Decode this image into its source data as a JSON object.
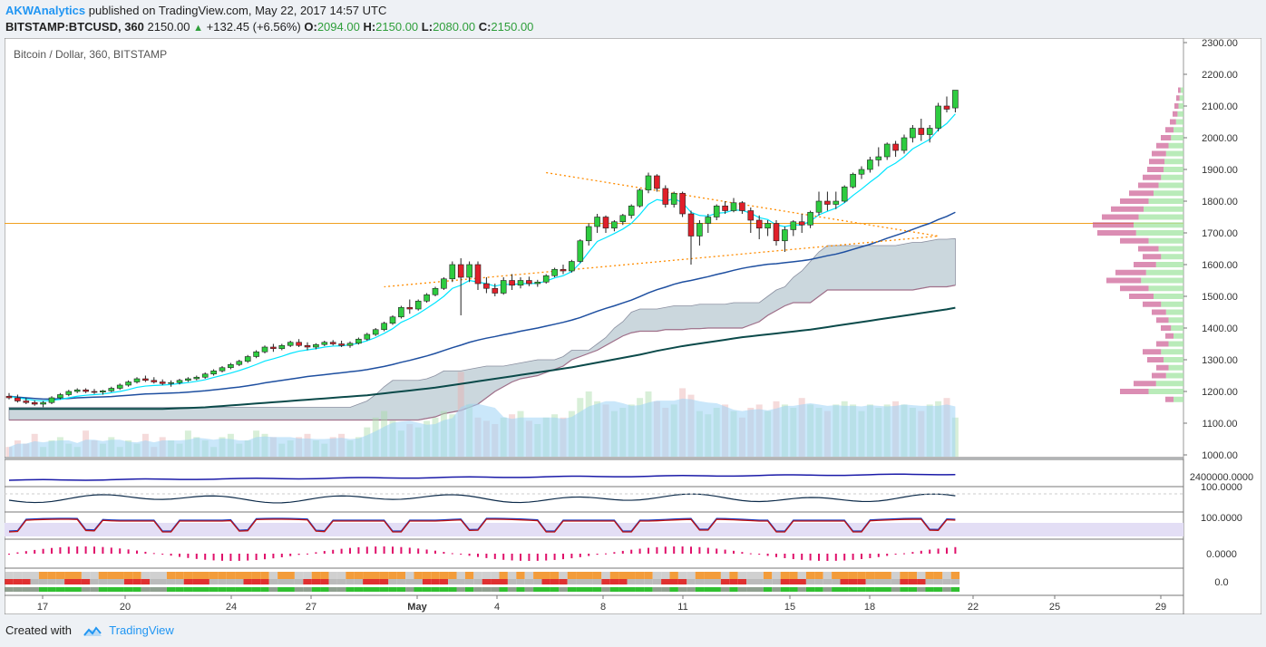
{
  "header": {
    "author": "AKWAnalytics",
    "published_text": "published on TradingView.com, May 22, 2017 14:57 UTC",
    "symbol": "BITSTAMP:BTCUSD, 360",
    "price": "2150.00",
    "change": "+132.45 (+6.56%)",
    "o_label": "O:",
    "o_val": "2094.00",
    "h_label": "H:",
    "h_val": "2150.00",
    "l_label": "L:",
    "l_val": "2080.00",
    "c_label": "C:",
    "c_val": "2150.00"
  },
  "footer": {
    "created_with": "Created with",
    "brand": "TradingView"
  },
  "colors": {
    "up": "#2ecc40",
    "down": "#e0202a",
    "ema_fast": "#00e5ff",
    "ema_mid": "#1e4fa0",
    "ema_slow": "#0b4a4a",
    "cloud": "#b9c9d1",
    "hline": "#f0a020",
    "triangle": "#ff8c00",
    "volume": "#9fd3f5",
    "accent": "#2196f3"
  },
  "chart_data": {
    "type": "candlestick",
    "title": "Bitcoin / Dollar, 360, BITSTAMP",
    "y_range": [
      1000,
      2300
    ],
    "y_ticks": [
      "1000.00",
      "1100.00",
      "1200.00",
      "1300.00",
      "1400.00",
      "1500.00",
      "1600.00",
      "1700.00",
      "1800.00",
      "1900.00",
      "2000.00",
      "2100.00",
      "2200.00",
      "2300.00"
    ],
    "x_ticks": [
      "17",
      "20",
      "24",
      "27",
      "May",
      "4",
      "8",
      "11",
      "15",
      "18",
      "22",
      "25",
      "29"
    ],
    "horizontal_line": 1730,
    "candles": [
      [
        1185,
        1195,
        1175,
        1180
      ],
      [
        1180,
        1190,
        1165,
        1170
      ],
      [
        1170,
        1180,
        1160,
        1165
      ],
      [
        1165,
        1172,
        1155,
        1160
      ],
      [
        1160,
        1170,
        1150,
        1165
      ],
      [
        1165,
        1185,
        1160,
        1180
      ],
      [
        1180,
        1195,
        1175,
        1190
      ],
      [
        1190,
        1205,
        1185,
        1200
      ],
      [
        1200,
        1210,
        1195,
        1205
      ],
      [
        1205,
        1210,
        1195,
        1200
      ],
      [
        1200,
        1208,
        1192,
        1198
      ],
      [
        1198,
        1205,
        1190,
        1202
      ],
      [
        1202,
        1215,
        1198,
        1210
      ],
      [
        1210,
        1225,
        1205,
        1220
      ],
      [
        1220,
        1235,
        1215,
        1230
      ],
      [
        1230,
        1245,
        1225,
        1240
      ],
      [
        1240,
        1250,
        1230,
        1235
      ],
      [
        1235,
        1245,
        1225,
        1230
      ],
      [
        1230,
        1238,
        1220,
        1225
      ],
      [
        1225,
        1235,
        1215,
        1228
      ],
      [
        1228,
        1240,
        1222,
        1235
      ],
      [
        1235,
        1245,
        1230,
        1240
      ],
      [
        1240,
        1250,
        1235,
        1245
      ],
      [
        1245,
        1260,
        1240,
        1255
      ],
      [
        1255,
        1270,
        1250,
        1265
      ],
      [
        1265,
        1280,
        1260,
        1275
      ],
      [
        1275,
        1290,
        1270,
        1285
      ],
      [
        1285,
        1300,
        1280,
        1295
      ],
      [
        1295,
        1315,
        1290,
        1310
      ],
      [
        1310,
        1330,
        1305,
        1325
      ],
      [
        1325,
        1345,
        1320,
        1340
      ],
      [
        1340,
        1350,
        1325,
        1335
      ],
      [
        1335,
        1350,
        1330,
        1345
      ],
      [
        1345,
        1360,
        1340,
        1355
      ],
      [
        1355,
        1365,
        1340,
        1345
      ],
      [
        1345,
        1355,
        1330,
        1340
      ],
      [
        1340,
        1352,
        1333,
        1348
      ],
      [
        1348,
        1360,
        1343,
        1355
      ],
      [
        1355,
        1362,
        1345,
        1350
      ],
      [
        1350,
        1360,
        1340,
        1345
      ],
      [
        1345,
        1358,
        1338,
        1352
      ],
      [
        1352,
        1370,
        1348,
        1365
      ],
      [
        1365,
        1385,
        1360,
        1380
      ],
      [
        1380,
        1400,
        1375,
        1395
      ],
      [
        1395,
        1420,
        1390,
        1415
      ],
      [
        1415,
        1440,
        1410,
        1435
      ],
      [
        1435,
        1470,
        1430,
        1465
      ],
      [
        1465,
        1490,
        1445,
        1460
      ],
      [
        1460,
        1490,
        1455,
        1485
      ],
      [
        1485,
        1510,
        1480,
        1505
      ],
      [
        1505,
        1530,
        1500,
        1525
      ],
      [
        1525,
        1560,
        1520,
        1555
      ],
      [
        1555,
        1610,
        1545,
        1600
      ],
      [
        1600,
        1620,
        1440,
        1560
      ],
      [
        1560,
        1610,
        1545,
        1600
      ],
      [
        1600,
        1610,
        1520,
        1540
      ],
      [
        1540,
        1560,
        1510,
        1525
      ],
      [
        1525,
        1540,
        1500,
        1510
      ],
      [
        1510,
        1560,
        1505,
        1550
      ],
      [
        1550,
        1570,
        1520,
        1535
      ],
      [
        1535,
        1560,
        1525,
        1550
      ],
      [
        1550,
        1562,
        1532,
        1540
      ],
      [
        1540,
        1552,
        1530,
        1545
      ],
      [
        1545,
        1570,
        1540,
        1565
      ],
      [
        1565,
        1590,
        1560,
        1585
      ],
      [
        1585,
        1600,
        1570,
        1580
      ],
      [
        1580,
        1615,
        1575,
        1610
      ],
      [
        1610,
        1680,
        1605,
        1675
      ],
      [
        1675,
        1730,
        1660,
        1720
      ],
      [
        1720,
        1760,
        1700,
        1750
      ],
      [
        1750,
        1755,
        1700,
        1715
      ],
      [
        1715,
        1740,
        1705,
        1735
      ],
      [
        1735,
        1760,
        1725,
        1755
      ],
      [
        1755,
        1790,
        1745,
        1785
      ],
      [
        1785,
        1840,
        1780,
        1835
      ],
      [
        1835,
        1890,
        1825,
        1880
      ],
      [
        1880,
        1885,
        1830,
        1840
      ],
      [
        1840,
        1850,
        1780,
        1790
      ],
      [
        1790,
        1830,
        1780,
        1825
      ],
      [
        1825,
        1830,
        1750,
        1760
      ],
      [
        1760,
        1770,
        1600,
        1690
      ],
      [
        1690,
        1740,
        1660,
        1730
      ],
      [
        1730,
        1760,
        1700,
        1750
      ],
      [
        1750,
        1790,
        1740,
        1785
      ],
      [
        1785,
        1800,
        1760,
        1770
      ],
      [
        1770,
        1810,
        1765,
        1795
      ],
      [
        1795,
        1800,
        1760,
        1770
      ],
      [
        1770,
        1780,
        1700,
        1740
      ],
      [
        1740,
        1755,
        1680,
        1715
      ],
      [
        1715,
        1740,
        1690,
        1730
      ],
      [
        1730,
        1740,
        1660,
        1675
      ],
      [
        1675,
        1720,
        1640,
        1710
      ],
      [
        1710,
        1740,
        1690,
        1735
      ],
      [
        1735,
        1760,
        1700,
        1725
      ],
      [
        1725,
        1770,
        1715,
        1765
      ],
      [
        1765,
        1830,
        1755,
        1800
      ],
      [
        1800,
        1830,
        1770,
        1790
      ],
      [
        1790,
        1830,
        1775,
        1800
      ],
      [
        1800,
        1850,
        1795,
        1845
      ],
      [
        1845,
        1890,
        1840,
        1885
      ],
      [
        1885,
        1910,
        1870,
        1900
      ],
      [
        1900,
        1940,
        1890,
        1930
      ],
      [
        1930,
        1970,
        1910,
        1940
      ],
      [
        1940,
        1985,
        1930,
        1980
      ],
      [
        1980,
        1990,
        1940,
        1960
      ],
      [
        1960,
        2010,
        1950,
        2000
      ],
      [
        2000,
        2040,
        1985,
        2030
      ],
      [
        2030,
        2060,
        1990,
        2010
      ],
      [
        2010,
        2040,
        1985,
        2030
      ],
      [
        2030,
        2110,
        2020,
        2100
      ],
      [
        2100,
        2130,
        2080,
        2090
      ],
      [
        2094,
        2150,
        2080,
        2150
      ]
    ],
    "ema_fast": [
      1185,
      1180,
      1176,
      1172,
      1170,
      1172,
      1175,
      1180,
      1185,
      1188,
      1190,
      1192,
      1196,
      1200,
      1206,
      1213,
      1217,
      1219,
      1220,
      1222,
      1225,
      1228,
      1232,
      1237,
      1244,
      1251,
      1258,
      1266,
      1275,
      1285,
      1296,
      1303,
      1311,
      1320,
      1327,
      1331,
      1335,
      1340,
      1343,
      1344,
      1347,
      1352,
      1360,
      1370,
      1383,
      1398,
      1418,
      1430,
      1445,
      1462,
      1480,
      1500,
      1525,
      1535,
      1550,
      1545,
      1540,
      1532,
      1538,
      1537,
      1540,
      1540,
      1541,
      1548,
      1558,
      1565,
      1578,
      1605,
      1640,
      1673,
      1685,
      1698,
      1712,
      1730,
      1758,
      1790,
      1805,
      1800,
      1808,
      1795,
      1765,
      1755,
      1753,
      1762,
      1764,
      1772,
      1771,
      1762,
      1748,
      1742,
      1725,
      1720,
      1725,
      1725,
      1737,
      1757,
      1768,
      1778,
      1795,
      1818,
      1838,
      1860,
      1880,
      1905,
      1920,
      1940,
      1965,
      1980,
      1995,
      2025,
      2045,
      2075
    ],
    "ema_mid": [
      1185,
      1182,
      1180,
      1178,
      1176,
      1176,
      1177,
      1178,
      1180,
      1181,
      1182,
      1183,
      1184,
      1186,
      1188,
      1190,
      1192,
      1193,
      1194,
      1195,
      1196,
      1198,
      1200,
      1202,
      1205,
      1208,
      1211,
      1214,
      1218,
      1222,
      1227,
      1231,
      1235,
      1239,
      1243,
      1247,
      1250,
      1253,
      1256,
      1259,
      1262,
      1265,
      1269,
      1274,
      1279,
      1285,
      1292,
      1298,
      1305,
      1312,
      1320,
      1329,
      1338,
      1346,
      1355,
      1362,
      1368,
      1373,
      1379,
      1384,
      1390,
      1395,
      1400,
      1406,
      1412,
      1418,
      1425,
      1433,
      1443,
      1453,
      1462,
      1470,
      1479,
      1488,
      1499,
      1511,
      1521,
      1529,
      1538,
      1545,
      1550,
      1556,
      1562,
      1569,
      1575,
      1582,
      1588,
      1593,
      1597,
      1601,
      1603,
      1606,
      1609,
      1612,
      1616,
      1622,
      1628,
      1633,
      1640,
      1648,
      1656,
      1664,
      1673,
      1683,
      1692,
      1701,
      1711,
      1721,
      1730,
      1742,
      1752,
      1765
    ],
    "ema_slow": [
      1145,
      1145,
      1145,
      1145,
      1145,
      1145,
      1145,
      1145,
      1145,
      1145,
      1145,
      1145,
      1145,
      1145,
      1145,
      1145,
      1145,
      1145,
      1145,
      1146,
      1147,
      1148,
      1149,
      1150,
      1152,
      1154,
      1156,
      1158,
      1160,
      1162,
      1164,
      1166,
      1168,
      1170,
      1172,
      1174,
      1176,
      1178,
      1180,
      1182,
      1184,
      1186,
      1188,
      1191,
      1194,
      1197,
      1200,
      1203,
      1206,
      1209,
      1212,
      1216,
      1220,
      1224,
      1228,
      1232,
      1236,
      1240,
      1244,
      1248,
      1252,
      1256,
      1260,
      1264,
      1268,
      1272,
      1276,
      1281,
      1286,
      1291,
      1296,
      1301,
      1306,
      1311,
      1316,
      1322,
      1328,
      1333,
      1338,
      1343,
      1347,
      1351,
      1355,
      1359,
      1363,
      1367,
      1371,
      1374,
      1377,
      1380,
      1383,
      1386,
      1389,
      1392,
      1395,
      1399,
      1403,
      1407,
      1411,
      1415,
      1419,
      1423,
      1427,
      1431,
      1435,
      1439,
      1443,
      1447,
      1451,
      1455,
      1459,
      1464
    ],
    "cloud_upper": [
      1150,
      1150,
      1150,
      1150,
      1150,
      1150,
      1150,
      1150,
      1150,
      1150,
      1150,
      1150,
      1150,
      1150,
      1150,
      1150,
      1150,
      1150,
      1150,
      1150,
      1150,
      1150,
      1150,
      1150,
      1150,
      1150,
      1150,
      1150,
      1150,
      1150,
      1150,
      1150,
      1150,
      1150,
      1150,
      1150,
      1150,
      1150,
      1150,
      1150,
      1150,
      1160,
      1170,
      1190,
      1215,
      1235,
      1235,
      1235,
      1235,
      1240,
      1250,
      1265,
      1265,
      1265,
      1270,
      1275,
      1280,
      1280,
      1280,
      1285,
      1290,
      1295,
      1300,
      1300,
      1300,
      1310,
      1330,
      1330,
      1330,
      1350,
      1370,
      1400,
      1420,
      1450,
      1460,
      1460,
      1460,
      1465,
      1470,
      1470,
      1470,
      1475,
      1475,
      1475,
      1475,
      1480,
      1480,
      1480,
      1480,
      1500,
      1520,
      1530,
      1560,
      1580,
      1610,
      1640,
      1660,
      1660,
      1660,
      1660,
      1660,
      1660,
      1660,
      1660,
      1660,
      1665,
      1670,
      1670,
      1675,
      1680,
      1680,
      1682
    ],
    "cloud_lower": [
      1110,
      1110,
      1110,
      1110,
      1110,
      1110,
      1110,
      1110,
      1110,
      1110,
      1110,
      1110,
      1110,
      1110,
      1110,
      1110,
      1110,
      1110,
      1110,
      1110,
      1110,
      1110,
      1110,
      1110,
      1110,
      1110,
      1110,
      1110,
      1110,
      1110,
      1110,
      1110,
      1110,
      1110,
      1110,
      1110,
      1110,
      1110,
      1110,
      1110,
      1110,
      1110,
      1110,
      1110,
      1110,
      1110,
      1110,
      1110,
      1110,
      1115,
      1120,
      1130,
      1135,
      1140,
      1150,
      1160,
      1180,
      1200,
      1215,
      1230,
      1240,
      1245,
      1250,
      1260,
      1270,
      1280,
      1300,
      1310,
      1320,
      1330,
      1345,
      1360,
      1375,
      1385,
      1390,
      1390,
      1390,
      1395,
      1395,
      1395,
      1398,
      1398,
      1400,
      1400,
      1400,
      1400,
      1400,
      1410,
      1420,
      1440,
      1455,
      1470,
      1480,
      1480,
      1480,
      1500,
      1520,
      1520,
      1520,
      1520,
      1520,
      1520,
      1520,
      1520,
      1520,
      1520,
      1520,
      1525,
      1530,
      1530,
      1530,
      1535
    ],
    "volume": [
      0.15,
      0.25,
      0.2,
      0.35,
      0.15,
      0.25,
      0.3,
      0.2,
      0.15,
      0.4,
      0.25,
      0.2,
      0.3,
      0.15,
      0.25,
      0.2,
      0.35,
      0.15,
      0.3,
      0.25,
      0.2,
      0.4,
      0.3,
      0.25,
      0.15,
      0.3,
      0.35,
      0.2,
      0.25,
      0.4,
      0.35,
      0.3,
      0.2,
      0.25,
      0.3,
      0.35,
      0.25,
      0.2,
      0.3,
      0.35,
      0.25,
      0.3,
      0.45,
      0.6,
      0.7,
      0.55,
      0.4,
      0.5,
      0.45,
      0.55,
      0.6,
      0.7,
      0.65,
      1.3,
      0.8,
      0.6,
      0.55,
      0.5,
      0.6,
      0.65,
      0.7,
      0.55,
      0.5,
      0.6,
      0.65,
      0.6,
      0.7,
      0.9,
      1.0,
      0.85,
      0.8,
      0.7,
      0.75,
      0.8,
      0.9,
      1.0,
      0.85,
      0.75,
      0.8,
      1.05,
      0.95,
      0.7,
      0.65,
      0.75,
      0.8,
      0.7,
      0.6,
      0.75,
      0.8,
      0.7,
      0.85,
      0.8,
      0.75,
      0.9,
      0.8,
      0.75,
      0.7,
      0.8,
      0.85,
      0.8,
      0.7,
      0.8,
      0.75,
      0.8,
      0.85,
      0.8,
      0.75,
      0.7,
      0.8,
      0.85,
      0.9,
      0.6
    ],
    "triangle": {
      "top": [
        63,
        1890
      ],
      "apex": [
        109,
        1690
      ],
      "bottom": [
        44,
        1530
      ]
    },
    "volume_profile": [
      [
        2150,
        0.06
      ],
      [
        2125,
        0.08
      ],
      [
        2100,
        0.1
      ],
      [
        2075,
        0.12
      ],
      [
        2050,
        0.15
      ],
      [
        2025,
        0.2
      ],
      [
        2000,
        0.25
      ],
      [
        1975,
        0.3
      ],
      [
        1950,
        0.35
      ],
      [
        1925,
        0.38
      ],
      [
        1900,
        0.4
      ],
      [
        1875,
        0.45
      ],
      [
        1850,
        0.5
      ],
      [
        1825,
        0.6
      ],
      [
        1800,
        0.7
      ],
      [
        1775,
        0.8
      ],
      [
        1750,
        0.9
      ],
      [
        1725,
        1.0
      ],
      [
        1700,
        0.95
      ],
      [
        1675,
        0.7
      ],
      [
        1650,
        0.5
      ],
      [
        1625,
        0.45
      ],
      [
        1600,
        0.55
      ],
      [
        1575,
        0.75
      ],
      [
        1550,
        0.85
      ],
      [
        1525,
        0.7
      ],
      [
        1500,
        0.6
      ],
      [
        1475,
        0.45
      ],
      [
        1450,
        0.35
      ],
      [
        1425,
        0.3
      ],
      [
        1400,
        0.25
      ],
      [
        1375,
        0.2
      ],
      [
        1350,
        0.3
      ],
      [
        1325,
        0.45
      ],
      [
        1300,
        0.4
      ],
      [
        1275,
        0.3
      ],
      [
        1250,
        0.35
      ],
      [
        1225,
        0.55
      ],
      [
        1200,
        0.7
      ],
      [
        1175,
        0.2
      ]
    ],
    "price_label": "2400000.0000",
    "sub_panel_labels": [
      "2400000.0000",
      "100.0000",
      "100.0000",
      "0.0000",
      "0.0"
    ],
    "sub_panel_ticks": [
      "100.0000",
      "100.0000",
      "0.0000",
      "0.0"
    ]
  }
}
